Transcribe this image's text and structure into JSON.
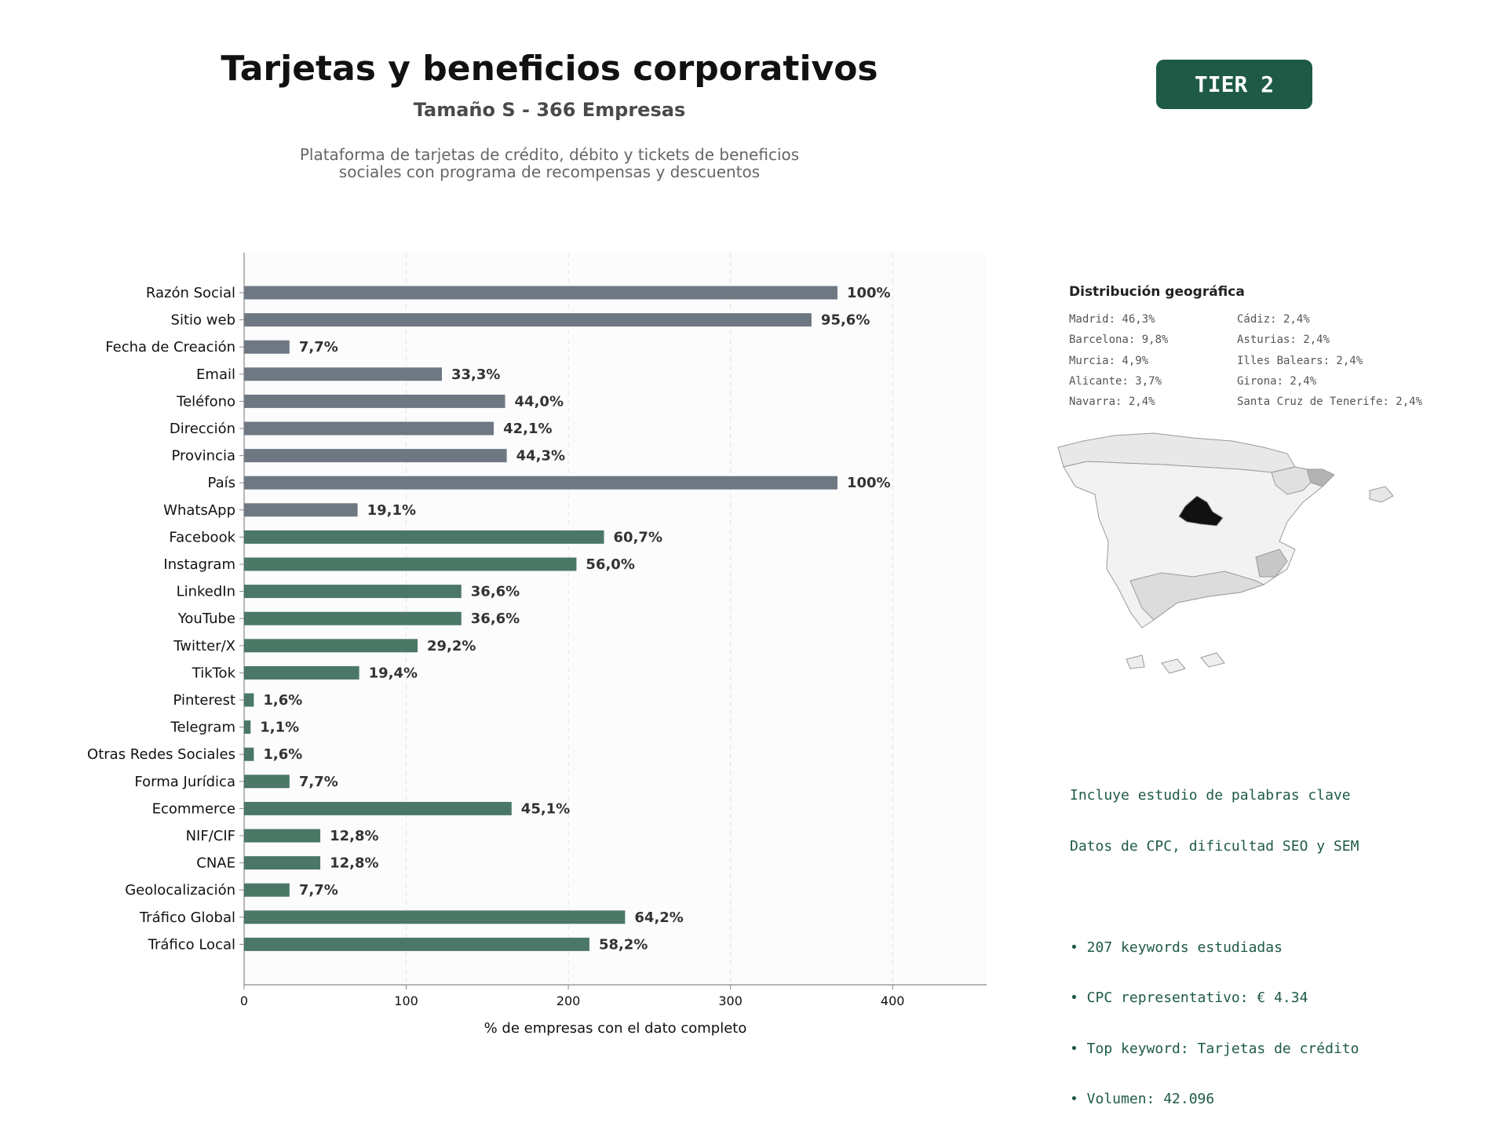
{
  "header": {
    "title": "Tarjetas y beneficios corporativos",
    "subtitle": "Tamaño S - 366 Empresas",
    "description_lines": [
      "Plataforma de tarjetas de crédito, débito y tickets de beneficios",
      "sociales con programa de recompensas y descuentos"
    ],
    "tier_badge": "TIER 2"
  },
  "colors": {
    "basic_bar": "#6e7883",
    "advanced_bar": "#4a7766",
    "badge": "#1e5a45",
    "keyword_text": "#1e5a45",
    "madrid": "#111111"
  },
  "chart_data": {
    "type": "bar",
    "orientation": "horizontal",
    "categories": [
      "Razón Social",
      "Sitio web",
      "Fecha de Creación",
      "Email",
      "Teléfono",
      "Dirección",
      "Provincia",
      "País",
      "WhatsApp",
      "Facebook",
      "Instagram",
      "LinkedIn",
      "YouTube",
      "Twitter/X",
      "TikTok",
      "Pinterest",
      "Telegram",
      "Otras Redes Sociales",
      "Forma Jurídica",
      "Ecommerce",
      "NIF/CIF",
      "CNAE",
      "Geolocalización",
      "Tráfico Global",
      "Tráfico Local"
    ],
    "values": [
      366,
      350,
      28,
      122,
      161,
      154,
      162,
      366,
      70,
      222,
      205,
      134,
      134,
      107,
      71,
      6,
      4,
      6,
      28,
      165,
      47,
      47,
      28,
      235,
      213
    ],
    "labels": [
      "100%",
      "95,6%",
      "7,7%",
      "33,3%",
      "44,0%",
      "42,1%",
      "44,3%",
      "100%",
      "19,1%",
      "60,7%",
      "56,0%",
      "36,6%",
      "36,6%",
      "29,2%",
      "19,4%",
      "1,6%",
      "1,1%",
      "1,6%",
      "7,7%",
      "45,1%",
      "12,8%",
      "12,8%",
      "7,7%",
      "64,2%",
      "58,2%"
    ],
    "bar_group": [
      "basic",
      "basic",
      "basic",
      "basic",
      "basic",
      "basic",
      "basic",
      "basic",
      "basic",
      "advanced",
      "advanced",
      "advanced",
      "advanced",
      "advanced",
      "advanced",
      "advanced",
      "advanced",
      "advanced",
      "advanced",
      "advanced",
      "advanced",
      "advanced",
      "advanced",
      "advanced",
      "advanced"
    ],
    "xlabel": "% de empresas con el dato completo",
    "xlim": [
      0,
      458
    ],
    "xticks": [
      0,
      100,
      200,
      300,
      400
    ],
    "grid": "vertical dashed"
  },
  "geo": {
    "title": "Distribución geográfica",
    "col1": [
      "Madrid: 46,3%",
      "Barcelona: 9,8%",
      "Murcia: 4,9%",
      "Alicante: 3,7%",
      "Navarra: 2,4%"
    ],
    "col2": [
      "Cádiz: 2,4%",
      "Asturias: 2,4%",
      "Illes Balears: 2,4%",
      "Girona: 2,4%",
      "Santa Cruz de Tenerife: 2,4%"
    ]
  },
  "keywords": {
    "line1": "Incluye estudio de palabras clave",
    "line2": "Datos de CPC, dificultad SEO y SEM",
    "bullets": [
      "• 207 keywords estudiadas",
      "• CPC representativo: € 4.34",
      "• Top keyword: Tarjetas de crédito",
      "• Volumen: 42.096"
    ]
  }
}
